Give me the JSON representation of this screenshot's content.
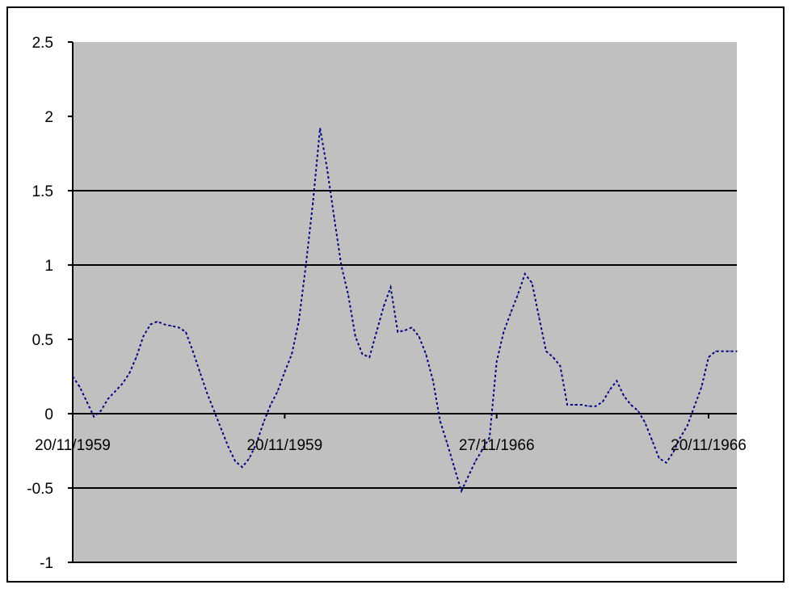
{
  "chart_data": {
    "type": "line",
    "title": "",
    "xlabel": "",
    "ylabel": "",
    "ylim": [
      -1,
      2.5
    ],
    "y_ticks": [
      {
        "value": 2.5,
        "label": "2.5"
      },
      {
        "value": 2,
        "label": "2"
      },
      {
        "value": 1.5,
        "label": "1.5"
      },
      {
        "value": 1,
        "label": "1"
      },
      {
        "value": 0.5,
        "label": "0.5"
      },
      {
        "value": 0,
        "label": "0"
      },
      {
        "value": -0.5,
        "label": "-0.5"
      },
      {
        "value": -1,
        "label": "-1"
      }
    ],
    "x_ticks": [
      {
        "index": 0,
        "label": "20/11/1959"
      },
      {
        "index": 30,
        "label": "20/11/1959"
      },
      {
        "index": 60,
        "label": "27/11/1966"
      },
      {
        "index": 90,
        "label": "20/11/1966"
      }
    ],
    "gridlines_y": [
      1.5,
      1,
      0,
      -0.5
    ],
    "legend": "none",
    "colors": {
      "plot_background": "#c0c0c0",
      "line": "#000080",
      "gridline": "#000000",
      "frame": "#000000"
    },
    "series": [
      {
        "values": [
          0.25,
          0.18,
          0.08,
          -0.02,
          0.02,
          0.1,
          0.15,
          0.2,
          0.27,
          0.38,
          0.52,
          0.6,
          0.62,
          0.6,
          0.59,
          0.58,
          0.55,
          0.42,
          0.28,
          0.14,
          0.02,
          -0.1,
          -0.22,
          -0.32,
          -0.36,
          -0.3,
          -0.2,
          -0.06,
          0.06,
          0.15,
          0.28,
          0.4,
          0.62,
          1.0,
          1.42,
          1.92,
          1.65,
          1.32,
          1.0,
          0.8,
          0.52,
          0.4,
          0.38,
          0.55,
          0.72,
          0.85,
          0.55,
          0.56,
          0.58,
          0.52,
          0.4,
          0.22,
          -0.05,
          -0.2,
          -0.36,
          -0.52,
          -0.42,
          -0.32,
          -0.24,
          -0.16,
          0.35,
          0.55,
          0.68,
          0.8,
          0.94,
          0.88,
          0.65,
          0.42,
          0.38,
          0.32,
          0.06,
          0.06,
          0.06,
          0.05,
          0.05,
          0.08,
          0.16,
          0.22,
          0.12,
          0.06,
          0.02,
          -0.06,
          -0.18,
          -0.3,
          -0.33,
          -0.26,
          -0.16,
          -0.08,
          0.05,
          0.18,
          0.38,
          0.42,
          0.42,
          0.42,
          0.42
        ]
      }
    ]
  }
}
